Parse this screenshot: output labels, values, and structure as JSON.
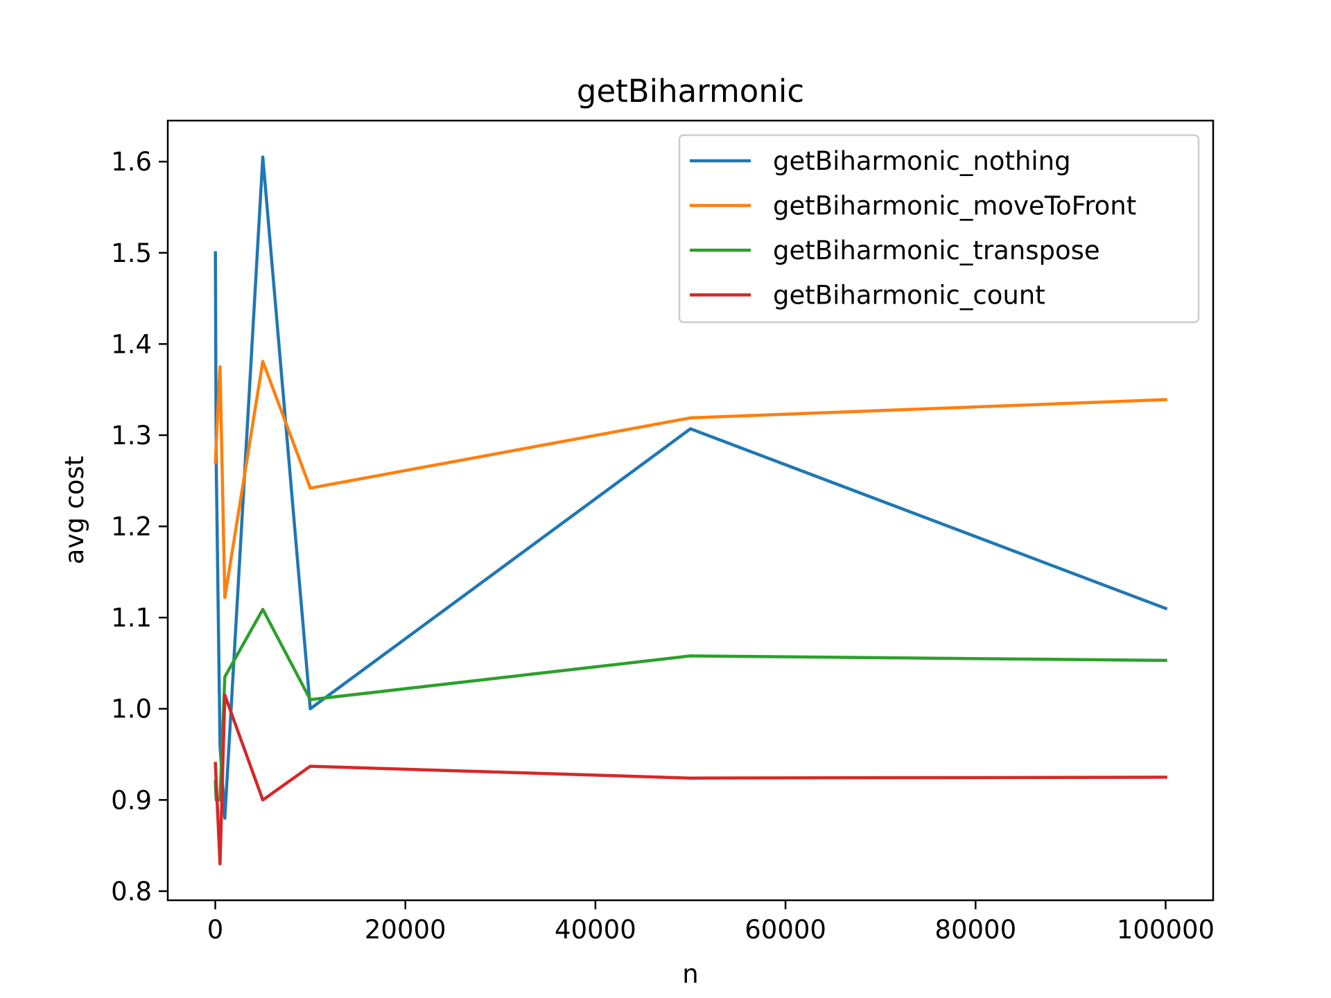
{
  "chart_data": {
    "type": "line",
    "title": "getBiharmonic",
    "xlabel": "n",
    "ylabel": "avg cost",
    "xlim": [
      -5000,
      105000
    ],
    "ylim": [
      0.79,
      1.645
    ],
    "xticks": [
      0,
      20000,
      40000,
      60000,
      80000,
      100000
    ],
    "yticks": [
      0.8,
      0.9,
      1.0,
      1.1,
      1.2,
      1.3,
      1.4,
      1.5,
      1.6
    ],
    "xtick_labels": [
      "0",
      "20000",
      "40000",
      "60000",
      "80000",
      "100000"
    ],
    "ytick_labels": [
      "0.8",
      "0.9",
      "1.0",
      "1.1",
      "1.2",
      "1.3",
      "1.4",
      "1.5",
      "1.6"
    ],
    "grid": false,
    "legend_position": "top-right",
    "x": [
      10,
      100,
      500,
      1000,
      5000,
      10000,
      50000,
      100000
    ],
    "series": [
      {
        "name": "getBiharmonic_nothing",
        "color": "#1f77b4",
        "values": [
          1.5,
          1.27,
          0.96,
          0.88,
          1.605,
          1.0,
          1.307,
          1.11
        ]
      },
      {
        "name": "getBiharmonic_moveToFront",
        "color": "#ff7f0e",
        "values": [
          1.27,
          1.29,
          1.375,
          1.122,
          1.381,
          1.242,
          1.319,
          1.339
        ]
      },
      {
        "name": "getBiharmonic_transpose",
        "color": "#2ca02c",
        "values": [
          0.92,
          0.9,
          0.9,
          1.035,
          1.109,
          1.01,
          1.058,
          1.053
        ]
      },
      {
        "name": "getBiharmonic_count",
        "color": "#d62728",
        "values": [
          0.94,
          0.92,
          0.83,
          1.015,
          0.9,
          0.937,
          0.924,
          0.925
        ]
      }
    ]
  }
}
